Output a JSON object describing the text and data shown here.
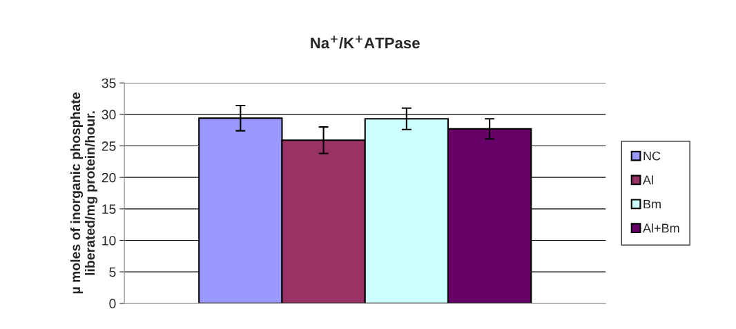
{
  "chart_data": {
    "type": "bar",
    "title": "Na$^{+}$/K$^{+}$ATPase",
    "ylabel": "µ moles of inorganic phosphate liberated/mg protein/hour.",
    "categories": [
      null
    ],
    "series": [
      {
        "name": "NC",
        "color": "#9999ff",
        "values": [
          29.4
        ],
        "errors": [
          2.0
        ]
      },
      {
        "name": "Al",
        "color": "#993366",
        "values": [
          25.9
        ],
        "errors": [
          2.1
        ]
      },
      {
        "name": "Bm",
        "color": "#ccffff",
        "values": [
          29.3
        ],
        "errors": [
          1.7
        ]
      },
      {
        "name": "Al+Bm",
        "color": "#660066",
        "values": [
          27.7
        ],
        "errors": [
          1.6
        ]
      }
    ],
    "ylim": [
      0,
      35
    ],
    "yticks": [
      0,
      5,
      10,
      15,
      20,
      25,
      30,
      35
    ],
    "grid": "y",
    "legend": "right"
  }
}
